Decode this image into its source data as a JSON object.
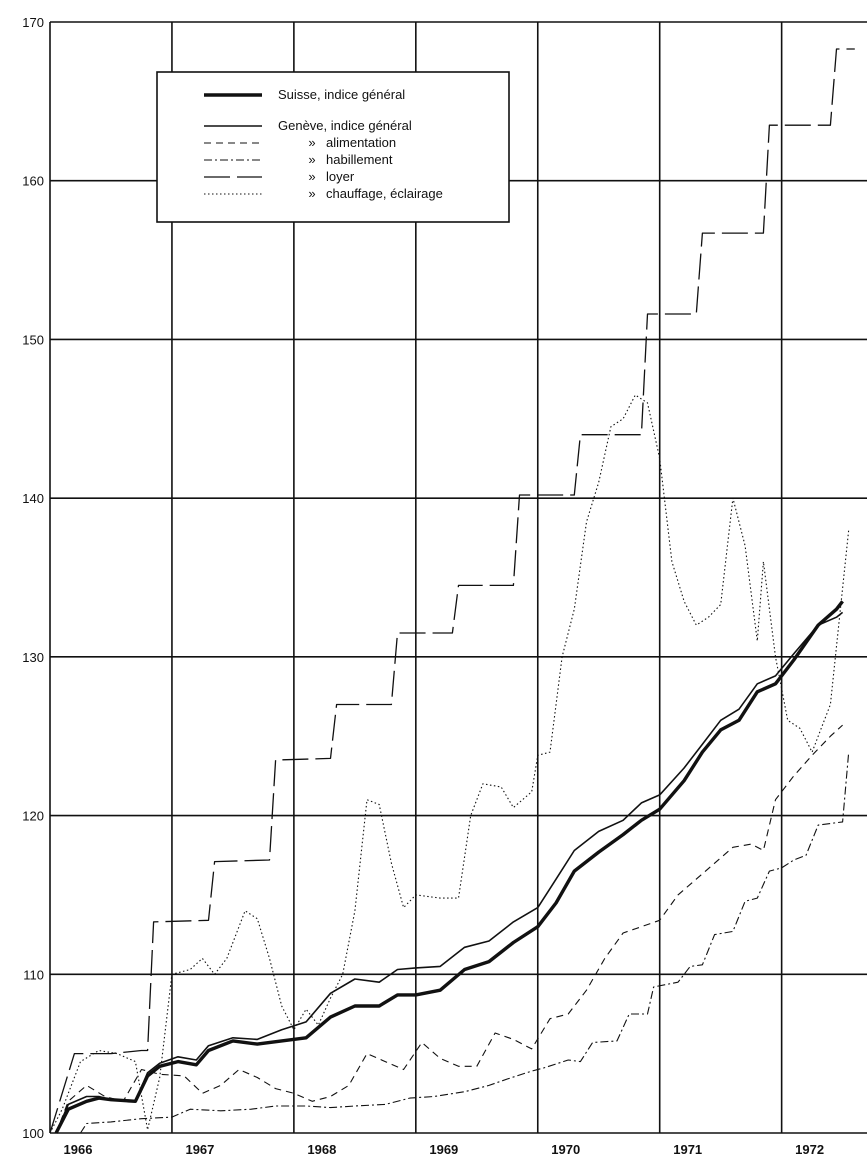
{
  "chart_data": {
    "type": "line",
    "title": "",
    "xlabel": "",
    "ylabel": "",
    "xlim": [
      1966,
      1972.7
    ],
    "ylim": [
      100,
      170
    ],
    "grid": true,
    "legend_position": "top-left",
    "x_ticks": [
      {
        "label": "1966",
        "value": 1966.0
      },
      {
        "label": "1967",
        "value": 1967.0
      },
      {
        "label": "1968",
        "value": 1968.0
      },
      {
        "label": "1969",
        "value": 1969.0
      },
      {
        "label": "1970",
        "value": 1970.0
      },
      {
        "label": "1971",
        "value": 1971.0
      },
      {
        "label": "1972",
        "value": 1972.0
      }
    ],
    "y_ticks": [
      "100",
      "110",
      "120",
      "130",
      "140",
      "150",
      "160",
      "170"
    ],
    "legend": [
      {
        "ditto": "",
        "label": "Suisse, indice général",
        "series": "suisse"
      },
      {
        "ditto": "",
        "label": "Genève, indice général",
        "series": "geneve"
      },
      {
        "ditto": "»",
        "label": "alimentation",
        "series": "alimentation"
      },
      {
        "ditto": "»",
        "label": "habillement",
        "series": "habillement"
      },
      {
        "ditto": "»",
        "label": "loyer",
        "series": "loyer"
      },
      {
        "ditto": "»",
        "label": "chauffage, éclairage",
        "series": "chauffage"
      }
    ],
    "series": [
      {
        "id": "suisse",
        "color": "#111111",
        "width": 3.4,
        "dash": "",
        "points": [
          [
            1966.05,
            100
          ],
          [
            1966.15,
            101.5
          ],
          [
            1966.3,
            102
          ],
          [
            1966.4,
            102.2
          ],
          [
            1966.5,
            102.1
          ],
          [
            1966.7,
            102
          ],
          [
            1966.8,
            103.6
          ],
          [
            1966.9,
            104.2
          ],
          [
            1967.05,
            104.5
          ],
          [
            1967.2,
            104.3
          ],
          [
            1967.3,
            105.2
          ],
          [
            1967.5,
            105.8
          ],
          [
            1967.7,
            105.6
          ],
          [
            1967.9,
            105.8
          ],
          [
            1968.1,
            106
          ],
          [
            1968.3,
            107.3
          ],
          [
            1968.5,
            108
          ],
          [
            1968.7,
            108
          ],
          [
            1968.85,
            108.7
          ],
          [
            1969.0,
            108.7
          ],
          [
            1969.2,
            109
          ],
          [
            1969.4,
            110.3
          ],
          [
            1969.6,
            110.8
          ],
          [
            1969.8,
            112
          ],
          [
            1970.0,
            113
          ],
          [
            1970.15,
            114.5
          ],
          [
            1970.3,
            116.5
          ],
          [
            1970.5,
            117.7
          ],
          [
            1970.7,
            118.8
          ],
          [
            1970.85,
            119.7
          ],
          [
            1971.0,
            120.4
          ],
          [
            1971.2,
            122.2
          ],
          [
            1971.35,
            124
          ],
          [
            1971.5,
            125.4
          ],
          [
            1971.65,
            126
          ],
          [
            1971.8,
            127.8
          ],
          [
            1971.95,
            128.3
          ],
          [
            1972.1,
            129.8
          ],
          [
            1972.3,
            132
          ],
          [
            1972.45,
            133
          ],
          [
            1972.5,
            133.5
          ]
        ]
      },
      {
        "id": "geneve",
        "color": "#111111",
        "width": 1.6,
        "dash": "",
        "points": [
          [
            1966.05,
            100
          ],
          [
            1966.15,
            101.8
          ],
          [
            1966.3,
            102.3
          ],
          [
            1966.4,
            102.3
          ],
          [
            1966.5,
            102.1
          ],
          [
            1966.7,
            102
          ],
          [
            1966.8,
            103.8
          ],
          [
            1966.9,
            104.4
          ],
          [
            1967.05,
            104.8
          ],
          [
            1967.2,
            104.6
          ],
          [
            1967.3,
            105.5
          ],
          [
            1967.5,
            106
          ],
          [
            1967.7,
            105.9
          ],
          [
            1967.9,
            106.5
          ],
          [
            1968.1,
            107
          ],
          [
            1968.3,
            108.8
          ],
          [
            1968.5,
            109.7
          ],
          [
            1968.7,
            109.5
          ],
          [
            1968.85,
            110.3
          ],
          [
            1969.0,
            110.4
          ],
          [
            1969.2,
            110.5
          ],
          [
            1969.4,
            111.7
          ],
          [
            1969.6,
            112.1
          ],
          [
            1969.8,
            113.3
          ],
          [
            1970.0,
            114.2
          ],
          [
            1970.15,
            116
          ],
          [
            1970.3,
            117.8
          ],
          [
            1970.5,
            119
          ],
          [
            1970.7,
            119.7
          ],
          [
            1970.85,
            120.8
          ],
          [
            1971.0,
            121.3
          ],
          [
            1971.2,
            123
          ],
          [
            1971.35,
            124.5
          ],
          [
            1971.5,
            126
          ],
          [
            1971.65,
            126.7
          ],
          [
            1971.8,
            128.3
          ],
          [
            1971.95,
            128.8
          ],
          [
            1972.1,
            130.2
          ],
          [
            1972.3,
            132
          ],
          [
            1972.45,
            132.5
          ],
          [
            1972.5,
            132.8
          ]
        ]
      },
      {
        "id": "alimentation",
        "color": "#111111",
        "width": 1.1,
        "dash": "7,5",
        "points": [
          [
            1966.05,
            100
          ],
          [
            1966.15,
            102
          ],
          [
            1966.3,
            103
          ],
          [
            1966.45,
            102.3
          ],
          [
            1966.6,
            102
          ],
          [
            1966.75,
            104
          ],
          [
            1966.9,
            103.7
          ],
          [
            1967.1,
            103.6
          ],
          [
            1967.25,
            102.5
          ],
          [
            1967.4,
            103
          ],
          [
            1967.55,
            104
          ],
          [
            1967.7,
            103.5
          ],
          [
            1967.85,
            102.8
          ],
          [
            1968.0,
            102.5
          ],
          [
            1968.15,
            102
          ],
          [
            1968.3,
            102.3
          ],
          [
            1968.45,
            103
          ],
          [
            1968.6,
            105
          ],
          [
            1968.75,
            104.5
          ],
          [
            1968.9,
            104
          ],
          [
            1969.05,
            105.7
          ],
          [
            1969.2,
            104.7
          ],
          [
            1969.35,
            104.2
          ],
          [
            1969.5,
            104.2
          ],
          [
            1969.65,
            106.3
          ],
          [
            1969.8,
            105.9
          ],
          [
            1969.95,
            105.3
          ],
          [
            1970.1,
            107.2
          ],
          [
            1970.25,
            107.5
          ],
          [
            1970.4,
            109
          ],
          [
            1970.55,
            111
          ],
          [
            1970.7,
            112.6
          ],
          [
            1970.85,
            113
          ],
          [
            1971.0,
            113.4
          ],
          [
            1971.15,
            115
          ],
          [
            1971.3,
            116
          ],
          [
            1971.45,
            117
          ],
          [
            1971.6,
            118
          ],
          [
            1971.75,
            118.2
          ],
          [
            1971.85,
            117.8
          ],
          [
            1971.95,
            121
          ],
          [
            1972.1,
            122.5
          ],
          [
            1972.25,
            123.8
          ],
          [
            1972.4,
            125
          ],
          [
            1972.5,
            125.7
          ]
        ]
      },
      {
        "id": "habillement",
        "color": "#111111",
        "width": 1.1,
        "dash": "8,3,2,3",
        "points": [
          [
            1966.25,
            100
          ],
          [
            1966.3,
            100.6
          ],
          [
            1966.5,
            100.7
          ],
          [
            1966.75,
            100.9
          ],
          [
            1967.0,
            101
          ],
          [
            1967.15,
            101.5
          ],
          [
            1967.4,
            101.4
          ],
          [
            1967.65,
            101.5
          ],
          [
            1967.85,
            101.7
          ],
          [
            1968.1,
            101.7
          ],
          [
            1968.3,
            101.6
          ],
          [
            1968.5,
            101.7
          ],
          [
            1968.75,
            101.8
          ],
          [
            1968.95,
            102.2
          ],
          [
            1969.15,
            102.3
          ],
          [
            1969.4,
            102.6
          ],
          [
            1969.6,
            103
          ],
          [
            1969.75,
            103.4
          ],
          [
            1969.95,
            103.9
          ],
          [
            1970.05,
            104.1
          ],
          [
            1970.25,
            104.6
          ],
          [
            1970.35,
            104.5
          ],
          [
            1970.45,
            105.7
          ],
          [
            1970.65,
            105.8
          ],
          [
            1970.75,
            107.5
          ],
          [
            1970.9,
            107.5
          ],
          [
            1970.95,
            109.2
          ],
          [
            1971.15,
            109.5
          ],
          [
            1971.25,
            110.5
          ],
          [
            1971.35,
            110.6
          ],
          [
            1971.45,
            112.5
          ],
          [
            1971.6,
            112.7
          ],
          [
            1971.7,
            114.6
          ],
          [
            1971.8,
            114.8
          ],
          [
            1971.9,
            116.5
          ],
          [
            1972.0,
            116.7
          ],
          [
            1972.1,
            117.2
          ],
          [
            1972.2,
            117.5
          ],
          [
            1972.3,
            119.4
          ],
          [
            1972.5,
            119.6
          ],
          [
            1972.55,
            124
          ]
        ]
      },
      {
        "id": "loyer",
        "color": "#111111",
        "width": 1.3,
        "dash": "26,7",
        "points": [
          [
            1966.0,
            100
          ],
          [
            1966.2,
            105
          ],
          [
            1966.45,
            105
          ],
          [
            1966.5,
            105
          ],
          [
            1966.75,
            105.2
          ],
          [
            1966.8,
            105.2
          ],
          [
            1966.85,
            113.3
          ],
          [
            1967.3,
            113.4
          ],
          [
            1967.35,
            117.1
          ],
          [
            1967.8,
            117.2
          ],
          [
            1967.85,
            123.5
          ],
          [
            1968.3,
            123.6
          ],
          [
            1968.35,
            127
          ],
          [
            1968.8,
            127
          ],
          [
            1968.85,
            131.5
          ],
          [
            1969.3,
            131.5
          ],
          [
            1969.35,
            134.5
          ],
          [
            1969.8,
            134.5
          ],
          [
            1969.85,
            140.2
          ],
          [
            1970.3,
            140.2
          ],
          [
            1970.35,
            144
          ],
          [
            1970.85,
            144
          ],
          [
            1970.9,
            151.6
          ],
          [
            1971.3,
            151.6
          ],
          [
            1971.35,
            156.7
          ],
          [
            1971.85,
            156.7
          ],
          [
            1971.9,
            163.5
          ],
          [
            1972.4,
            163.5
          ],
          [
            1972.45,
            168.3
          ],
          [
            1972.6,
            168.3
          ]
        ]
      },
      {
        "id": "chauffage",
        "color": "#111111",
        "width": 1.1,
        "dash": "1.5,2.5",
        "points": [
          [
            1966.0,
            100
          ],
          [
            1966.1,
            101.5
          ],
          [
            1966.25,
            104.5
          ],
          [
            1966.4,
            105.2
          ],
          [
            1966.55,
            105
          ],
          [
            1966.7,
            104.5
          ],
          [
            1966.8,
            100.2
          ],
          [
            1966.9,
            103.5
          ],
          [
            1967.0,
            110
          ],
          [
            1967.15,
            110.3
          ],
          [
            1967.25,
            111
          ],
          [
            1967.35,
            110
          ],
          [
            1967.45,
            111
          ],
          [
            1967.6,
            114
          ],
          [
            1967.7,
            113.5
          ],
          [
            1967.8,
            111
          ],
          [
            1967.9,
            108
          ],
          [
            1968.0,
            106.5
          ],
          [
            1968.1,
            107.8
          ],
          [
            1968.2,
            106.8
          ],
          [
            1968.3,
            108.5
          ],
          [
            1968.4,
            110
          ],
          [
            1968.5,
            114
          ],
          [
            1968.6,
            121
          ],
          [
            1968.7,
            120.7
          ],
          [
            1968.8,
            117
          ],
          [
            1968.9,
            114.2
          ],
          [
            1969.0,
            115
          ],
          [
            1969.2,
            114.8
          ],
          [
            1969.35,
            114.8
          ],
          [
            1969.45,
            120
          ],
          [
            1969.55,
            122
          ],
          [
            1969.7,
            121.8
          ],
          [
            1969.8,
            120.5
          ],
          [
            1969.95,
            121.5
          ],
          [
            1970.0,
            123.8
          ],
          [
            1970.1,
            124
          ],
          [
            1970.2,
            130
          ],
          [
            1970.3,
            133
          ],
          [
            1970.4,
            138.5
          ],
          [
            1970.5,
            141
          ],
          [
            1970.6,
            144.5
          ],
          [
            1970.7,
            145
          ],
          [
            1970.8,
            146.5
          ],
          [
            1970.9,
            146
          ],
          [
            1971.0,
            142.5
          ],
          [
            1971.1,
            136
          ],
          [
            1971.2,
            133.5
          ],
          [
            1971.3,
            132
          ],
          [
            1971.4,
            132.5
          ],
          [
            1971.5,
            133.3
          ],
          [
            1971.6,
            140
          ],
          [
            1971.7,
            137
          ],
          [
            1971.8,
            131
          ],
          [
            1971.85,
            136
          ],
          [
            1971.95,
            130
          ],
          [
            1972.05,
            126
          ],
          [
            1972.15,
            125.5
          ],
          [
            1972.25,
            124
          ],
          [
            1972.3,
            125
          ],
          [
            1972.4,
            127
          ],
          [
            1972.55,
            138
          ]
        ]
      }
    ]
  }
}
